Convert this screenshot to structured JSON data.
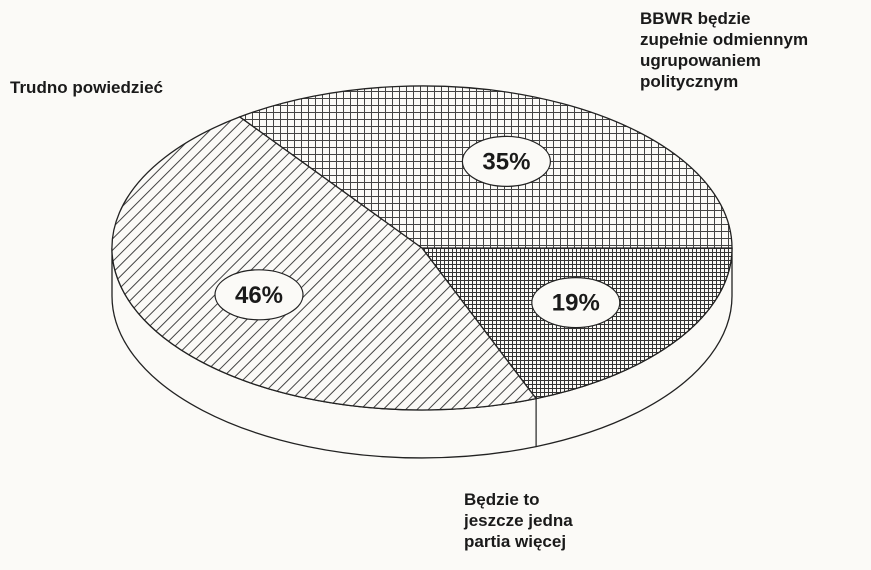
{
  "chart_data": {
    "type": "pie",
    "title": "",
    "slices": [
      {
        "label_lines": [
          "BBWR będzie",
          "zupełnie odmiennym",
          "ugrupowaniem",
          "politycznym"
        ],
        "value": 19,
        "value_label": "19%",
        "pattern": "fine-crosshatch"
      },
      {
        "label_lines": [
          "Będzie to",
          "jeszcze jedna",
          "partia więcej"
        ],
        "value": 46,
        "value_label": "46%",
        "pattern": "diagonal-hatch"
      },
      {
        "label_lines": [
          "Trudno powiedzieć"
        ],
        "value": 35,
        "value_label": "35%",
        "pattern": "grid-crosshatch"
      }
    ],
    "style": "3d-oval",
    "legend": "none"
  }
}
